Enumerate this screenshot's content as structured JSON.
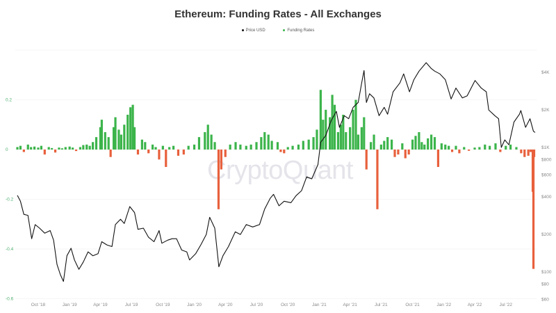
{
  "chart_data": {
    "type": "bar+line",
    "title": "Ethereum: Funding Rates - All Exchanges",
    "legend": [
      "Price USD",
      "Funding Rates"
    ],
    "legend_placement": "top-center",
    "watermark": "CryptoQuant",
    "colors": {
      "price": "#111111",
      "funding_positive": "#3cb44b",
      "funding_negative": "#e8603c",
      "left_axis": "#4caf6e"
    },
    "grid": true,
    "x_range": [
      "2018-08-01",
      "2022-09-25"
    ],
    "x_ticks": [
      "Oct '18",
      "Jan '19",
      "Apr '19",
      "Jul '19",
      "Oct '19",
      "Jan '20",
      "Apr '20",
      "Jul '20",
      "Oct '20",
      "Jan '21",
      "Apr '21",
      "Jul '21",
      "Oct '21",
      "Jan '22",
      "Apr '22",
      "Jul '22"
    ],
    "x_tick_dates": [
      "2018-10-01",
      "2019-01-01",
      "2019-04-01",
      "2019-07-01",
      "2019-10-01",
      "2020-01-01",
      "2020-04-01",
      "2020-07-01",
      "2020-10-01",
      "2021-01-01",
      "2021-04-01",
      "2021-07-01",
      "2021-10-01",
      "2022-01-01",
      "2022-04-01",
      "2022-07-01"
    ],
    "left_axis": {
      "ticks": [
        "0.2",
        "0",
        "-0.2",
        "-0.4",
        "-0.6"
      ],
      "tick_values": [
        0.2,
        0,
        -0.2,
        -0.4,
        -0.6
      ],
      "range": [
        -0.6,
        0.4
      ]
    },
    "right_axis": {
      "scale": "log",
      "ticks": [
        "$4K",
        "$2K",
        "$1K",
        "$800",
        "$600",
        "$400",
        "$200",
        "$100",
        "$80",
        "$60"
      ],
      "tick_values": [
        4000,
        2000,
        1000,
        800,
        600,
        400,
        200,
        100,
        80,
        60
      ]
    },
    "price_usd": [
      [
        "2018-08-01",
        412
      ],
      [
        "2018-08-10",
        370
      ],
      [
        "2018-08-20",
        290
      ],
      [
        "2018-09-01",
        285
      ],
      [
        "2018-09-12",
        185
      ],
      [
        "2018-09-22",
        240
      ],
      [
        "2018-10-05",
        225
      ],
      [
        "2018-10-20",
        205
      ],
      [
        "2018-11-05",
        215
      ],
      [
        "2018-11-15",
        180
      ],
      [
        "2018-11-25",
        115
      ],
      [
        "2018-12-05",
        95
      ],
      [
        "2018-12-14",
        84
      ],
      [
        "2018-12-24",
        135
      ],
      [
        "2019-01-05",
        155
      ],
      [
        "2019-01-15",
        125
      ],
      [
        "2019-01-28",
        105
      ],
      [
        "2019-02-10",
        120
      ],
      [
        "2019-02-24",
        145
      ],
      [
        "2019-03-10",
        135
      ],
      [
        "2019-03-25",
        140
      ],
      [
        "2019-04-05",
        175
      ],
      [
        "2019-04-20",
        165
      ],
      [
        "2019-05-05",
        160
      ],
      [
        "2019-05-15",
        240
      ],
      [
        "2019-05-30",
        265
      ],
      [
        "2019-06-10",
        245
      ],
      [
        "2019-06-26",
        335
      ],
      [
        "2019-07-10",
        300
      ],
      [
        "2019-07-20",
        220
      ],
      [
        "2019-08-05",
        225
      ],
      [
        "2019-08-20",
        190
      ],
      [
        "2019-09-05",
        175
      ],
      [
        "2019-09-20",
        215
      ],
      [
        "2019-09-28",
        170
      ],
      [
        "2019-10-15",
        180
      ],
      [
        "2019-10-28",
        185
      ],
      [
        "2019-11-10",
        185
      ],
      [
        "2019-11-25",
        150
      ],
      [
        "2019-12-10",
        145
      ],
      [
        "2019-12-18",
        125
      ],
      [
        "2020-01-05",
        140
      ],
      [
        "2020-01-20",
        165
      ],
      [
        "2020-02-05",
        200
      ],
      [
        "2020-02-15",
        275
      ],
      [
        "2020-03-01",
        225
      ],
      [
        "2020-03-13",
        110
      ],
      [
        "2020-03-25",
        135
      ],
      [
        "2020-04-10",
        160
      ],
      [
        "2020-04-30",
        210
      ],
      [
        "2020-05-15",
        200
      ],
      [
        "2020-06-01",
        240
      ],
      [
        "2020-06-20",
        230
      ],
      [
        "2020-07-10",
        240
      ],
      [
        "2020-07-25",
        320
      ],
      [
        "2020-08-10",
        390
      ],
      [
        "2020-08-20",
        420
      ],
      [
        "2020-09-05",
        340
      ],
      [
        "2020-09-20",
        370
      ],
      [
        "2020-10-10",
        360
      ],
      [
        "2020-10-25",
        410
      ],
      [
        "2020-11-10",
        450
      ],
      [
        "2020-11-25",
        580
      ],
      [
        "2020-12-10",
        560
      ],
      [
        "2020-12-28",
        730
      ],
      [
        "2021-01-05",
        1100
      ],
      [
        "2021-01-20",
        1250
      ],
      [
        "2021-02-05",
        1650
      ],
      [
        "2021-02-20",
        1950
      ],
      [
        "2021-03-01",
        1450
      ],
      [
        "2021-03-15",
        1800
      ],
      [
        "2021-03-28",
        1700
      ],
      [
        "2021-04-10",
        2100
      ],
      [
        "2021-04-25",
        2300
      ],
      [
        "2021-05-05",
        3300
      ],
      [
        "2021-05-12",
        4150
      ],
      [
        "2021-05-19",
        2300
      ],
      [
        "2021-05-28",
        2700
      ],
      [
        "2021-06-10",
        2500
      ],
      [
        "2021-06-25",
        1800
      ],
      [
        "2021-07-10",
        2100
      ],
      [
        "2021-07-20",
        1850
      ],
      [
        "2021-08-05",
        2800
      ],
      [
        "2021-08-25",
        3300
      ],
      [
        "2021-09-05",
        3900
      ],
      [
        "2021-09-22",
        2800
      ],
      [
        "2021-10-05",
        3500
      ],
      [
        "2021-10-20",
        4100
      ],
      [
        "2021-11-10",
        4800
      ],
      [
        "2021-11-25",
        4300
      ],
      [
        "2021-12-05",
        4100
      ],
      [
        "2021-12-20",
        3900
      ],
      [
        "2022-01-05",
        3500
      ],
      [
        "2022-01-22",
        2450
      ],
      [
        "2022-02-05",
        3000
      ],
      [
        "2022-02-24",
        2500
      ],
      [
        "2022-03-10",
        2600
      ],
      [
        "2022-04-02",
        3450
      ],
      [
        "2022-04-20",
        3000
      ],
      [
        "2022-05-05",
        2800
      ],
      [
        "2022-05-12",
        2000
      ],
      [
        "2022-05-30",
        1800
      ],
      [
        "2022-06-10",
        1700
      ],
      [
        "2022-06-18",
        1000
      ],
      [
        "2022-06-28",
        1150
      ],
      [
        "2022-07-10",
        1050
      ],
      [
        "2022-07-25",
        1600
      ],
      [
        "2022-08-10",
        1850
      ],
      [
        "2022-08-14",
        1980
      ],
      [
        "2022-08-28",
        1450
      ],
      [
        "2022-09-10",
        1700
      ],
      [
        "2022-09-20",
        1350
      ],
      [
        "2022-09-25",
        1320
      ]
    ],
    "funding_rates": [
      [
        "2018-08-01",
        0.01
      ],
      [
        "2018-08-10",
        0.015
      ],
      [
        "2018-08-20",
        -0.01
      ],
      [
        "2018-09-01",
        0.02
      ],
      [
        "2018-09-10",
        0.01
      ],
      [
        "2018-09-20",
        0.012
      ],
      [
        "2018-10-01",
        0.008
      ],
      [
        "2018-10-10",
        0.015
      ],
      [
        "2018-10-20",
        -0.02
      ],
      [
        "2018-11-01",
        0.01
      ],
      [
        "2018-11-10",
        0.006
      ],
      [
        "2018-11-20",
        -0.012
      ],
      [
        "2018-12-01",
        0.008
      ],
      [
        "2018-12-10",
        0.005
      ],
      [
        "2018-12-20",
        0.01
      ],
      [
        "2019-01-01",
        0.012
      ],
      [
        "2019-01-10",
        0.008
      ],
      [
        "2019-01-20",
        -0.006
      ],
      [
        "2019-02-01",
        0.01
      ],
      [
        "2019-02-10",
        0.018
      ],
      [
        "2019-02-20",
        0.02
      ],
      [
        "2019-03-01",
        0.015
      ],
      [
        "2019-03-10",
        0.03
      ],
      [
        "2019-03-20",
        0.05
      ],
      [
        "2019-04-01",
        0.09
      ],
      [
        "2019-04-05",
        0.12
      ],
      [
        "2019-04-15",
        0.07
      ],
      [
        "2019-04-25",
        0.05
      ],
      [
        "2019-05-01",
        -0.03
      ],
      [
        "2019-05-10",
        0.09
      ],
      [
        "2019-05-15",
        0.13
      ],
      [
        "2019-05-25",
        0.08
      ],
      [
        "2019-06-01",
        0.06
      ],
      [
        "2019-06-10",
        0.1
      ],
      [
        "2019-06-20",
        0.14
      ],
      [
        "2019-06-28",
        0.17
      ],
      [
        "2019-07-05",
        0.18
      ],
      [
        "2019-07-10",
        0.09
      ],
      [
        "2019-07-20",
        -0.02
      ],
      [
        "2019-08-01",
        0.04
      ],
      [
        "2019-08-10",
        0.03
      ],
      [
        "2019-08-20",
        -0.015
      ],
      [
        "2019-09-01",
        0.02
      ],
      [
        "2019-09-10",
        0.01
      ],
      [
        "2019-09-20",
        -0.04
      ],
      [
        "2019-10-01",
        0.015
      ],
      [
        "2019-10-10",
        -0.07
      ],
      [
        "2019-10-20",
        0.01
      ],
      [
        "2019-11-01",
        0.015
      ],
      [
        "2019-11-15",
        -0.025
      ],
      [
        "2019-12-01",
        -0.02
      ],
      [
        "2019-12-15",
        0.015
      ],
      [
        "2020-01-01",
        0.02
      ],
      [
        "2020-01-15",
        0.05
      ],
      [
        "2020-02-01",
        0.07
      ],
      [
        "2020-02-10",
        0.1
      ],
      [
        "2020-02-20",
        0.06
      ],
      [
        "2020-03-01",
        0.03
      ],
      [
        "2020-03-12",
        -0.24
      ],
      [
        "2020-03-20",
        -0.08
      ],
      [
        "2020-04-01",
        -0.03
      ],
      [
        "2020-04-15",
        0.02
      ],
      [
        "2020-05-01",
        0.03
      ],
      [
        "2020-05-15",
        0.02
      ],
      [
        "2020-06-01",
        0.015
      ],
      [
        "2020-06-15",
        0.02
      ],
      [
        "2020-07-01",
        0.03
      ],
      [
        "2020-07-15",
        0.05
      ],
      [
        "2020-07-25",
        0.07
      ],
      [
        "2020-08-05",
        0.06
      ],
      [
        "2020-08-15",
        0.035
      ],
      [
        "2020-09-01",
        0.03
      ],
      [
        "2020-09-10",
        -0.01
      ],
      [
        "2020-09-20",
        -0.015
      ],
      [
        "2020-10-01",
        0.01
      ],
      [
        "2020-10-15",
        0.015
      ],
      [
        "2020-11-01",
        0.02
      ],
      [
        "2020-11-15",
        0.035
      ],
      [
        "2020-12-01",
        0.04
      ],
      [
        "2020-12-15",
        0.05
      ],
      [
        "2020-12-25",
        0.08
      ],
      [
        "2021-01-05",
        0.24
      ],
      [
        "2021-01-12",
        0.12
      ],
      [
        "2021-01-20",
        0.16
      ],
      [
        "2021-02-01",
        0.13
      ],
      [
        "2021-02-08",
        0.22
      ],
      [
        "2021-02-15",
        0.18
      ],
      [
        "2021-02-25",
        0.07
      ],
      [
        "2021-03-05",
        0.1
      ],
      [
        "2021-03-12",
        0.14
      ],
      [
        "2021-03-20",
        0.07
      ],
      [
        "2021-04-01",
        0.09
      ],
      [
        "2021-04-10",
        0.16
      ],
      [
        "2021-04-18",
        0.2
      ],
      [
        "2021-04-25",
        0.06
      ],
      [
        "2021-05-05",
        0.09
      ],
      [
        "2021-05-12",
        0.13
      ],
      [
        "2021-05-19",
        -0.08
      ],
      [
        "2021-06-01",
        0.03
      ],
      [
        "2021-06-10",
        0.06
      ],
      [
        "2021-06-20",
        -0.24
      ],
      [
        "2021-07-01",
        0.02
      ],
      [
        "2021-07-10",
        0.035
      ],
      [
        "2021-07-20",
        0.05
      ],
      [
        "2021-08-01",
        0.04
      ],
      [
        "2021-08-10",
        -0.03
      ],
      [
        "2021-08-20",
        -0.02
      ],
      [
        "2021-09-01",
        0.025
      ],
      [
        "2021-09-10",
        -0.035
      ],
      [
        "2021-09-20",
        -0.02
      ],
      [
        "2021-10-01",
        0.04
      ],
      [
        "2021-10-10",
        0.055
      ],
      [
        "2021-10-20",
        0.07
      ],
      [
        "2021-10-28",
        0.03
      ],
      [
        "2021-11-05",
        0.02
      ],
      [
        "2021-11-15",
        0.045
      ],
      [
        "2021-11-25",
        0.06
      ],
      [
        "2021-12-05",
        0.05
      ],
      [
        "2021-12-15",
        -0.07
      ],
      [
        "2021-12-25",
        0.025
      ],
      [
        "2022-01-05",
        0.02
      ],
      [
        "2022-01-15",
        0.015
      ],
      [
        "2022-01-25",
        -0.01
      ],
      [
        "2022-02-05",
        0.015
      ],
      [
        "2022-02-15",
        -0.015
      ],
      [
        "2022-03-01",
        0.01
      ],
      [
        "2022-03-15",
        -0.005
      ],
      [
        "2022-04-01",
        0.008
      ],
      [
        "2022-04-15",
        0.01
      ],
      [
        "2022-05-01",
        0.02
      ],
      [
        "2022-05-15",
        0.015
      ],
      [
        "2022-06-01",
        0.025
      ],
      [
        "2022-06-15",
        -0.01
      ],
      [
        "2022-07-01",
        0.015
      ],
      [
        "2022-07-15",
        0.02
      ],
      [
        "2022-08-01",
        0.01
      ],
      [
        "2022-08-15",
        -0.015
      ],
      [
        "2022-08-25",
        -0.03
      ],
      [
        "2022-09-05",
        -0.025
      ],
      [
        "2022-09-12",
        -0.01
      ],
      [
        "2022-09-18",
        -0.17
      ],
      [
        "2022-09-20",
        -0.48
      ],
      [
        "2022-09-22",
        -0.03
      ]
    ]
  }
}
